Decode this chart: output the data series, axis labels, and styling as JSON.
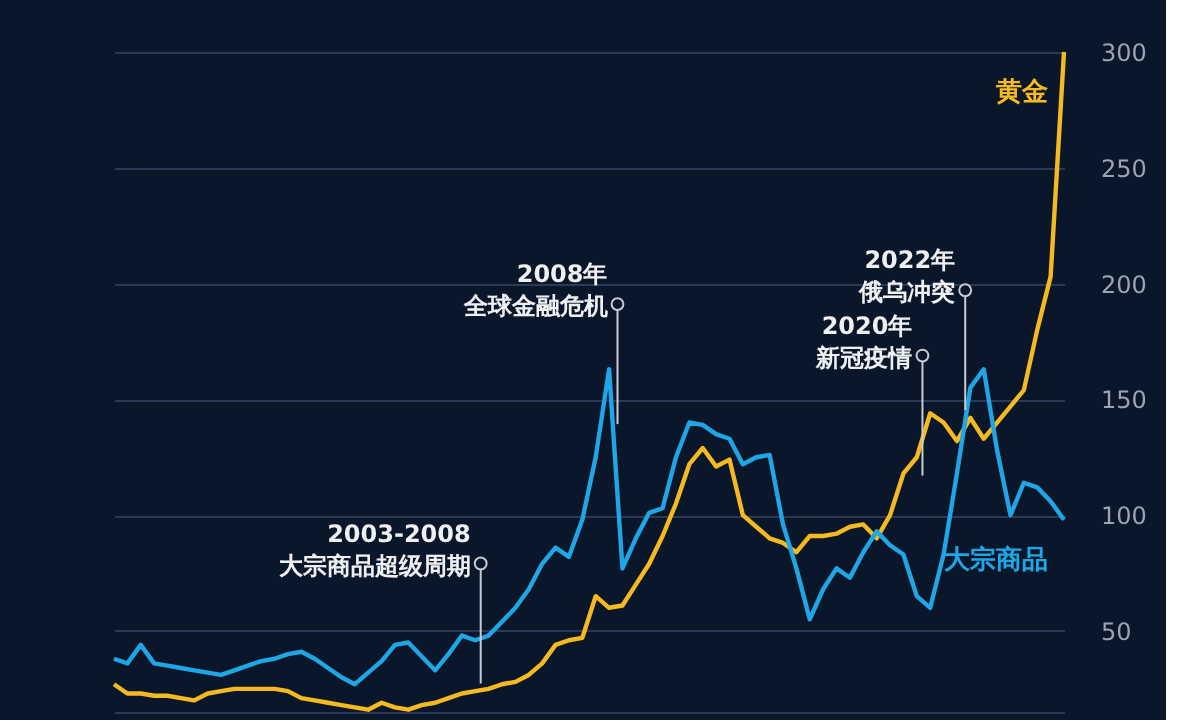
{
  "chart_data": {
    "type": "line",
    "categories": [
      null,
      null,
      null,
      null,
      null,
      null,
      null,
      null,
      null,
      null,
      null,
      null,
      null,
      null,
      null,
      null,
      null,
      null,
      null,
      null,
      null,
      null,
      null,
      null,
      null,
      null,
      null,
      null,
      null,
      null,
      null,
      null,
      null,
      null,
      null,
      null,
      null,
      null,
      null,
      null,
      null,
      null,
      null,
      null,
      null,
      null,
      null,
      null,
      null,
      null,
      null,
      null,
      null,
      null,
      null,
      null,
      null,
      null,
      null,
      null,
      null,
      null,
      null,
      null,
      null,
      null,
      null,
      null,
      null,
      null,
      null,
      null
    ],
    "ylim": [
      15,
      300
    ],
    "yticks": [
      50,
      100,
      150,
      200,
      250,
      300
    ],
    "grid": "y",
    "legend": false,
    "tick_labels": "y",
    "line_style": "solid",
    "marker": "none",
    "series": [
      {
        "name": "黄金",
        "color": "#f5b921",
        "values": [
          27,
          23,
          23,
          22,
          22,
          21,
          20,
          23,
          24,
          25,
          25,
          25,
          25,
          24,
          21,
          20,
          19,
          18,
          17,
          16,
          19,
          17,
          16,
          18,
          19,
          21,
          23,
          24,
          25,
          27,
          28,
          31,
          36,
          44,
          46,
          47,
          65,
          60,
          61,
          70,
          79,
          91,
          105,
          122,
          129,
          121,
          124,
          100,
          95,
          90,
          88,
          84,
          91,
          91,
          92,
          95,
          96,
          90,
          100,
          118,
          125,
          144,
          140,
          132,
          142,
          133,
          140,
          147,
          154,
          180,
          203,
          300
        ]
      },
      {
        "name": "大宗商品",
        "color": "#1ea6e6",
        "values": [
          38,
          36,
          44,
          36,
          35,
          34,
          33,
          32,
          31,
          33,
          35,
          37,
          38,
          40,
          41,
          38,
          34,
          30,
          27,
          32,
          37,
          44,
          45,
          39,
          33,
          40,
          48,
          46,
          48,
          54,
          60,
          68,
          79,
          86,
          82,
          98,
          125,
          163,
          77,
          90,
          101,
          103,
          125,
          140,
          139,
          135,
          133,
          122,
          125,
          126,
          96,
          77,
          55,
          68,
          77,
          73,
          84,
          93,
          87,
          83,
          65,
          60,
          83,
          118,
          155,
          163,
          128,
          100,
          114,
          112,
          106,
          98
        ]
      }
    ],
    "annotations": [
      "2003-2008",
      "大宗商品超级周期",
      "2008年",
      "全球金融危机",
      "2020年",
      "新冠疫情",
      "2022年",
      "俄乌冲突"
    ]
  }
}
